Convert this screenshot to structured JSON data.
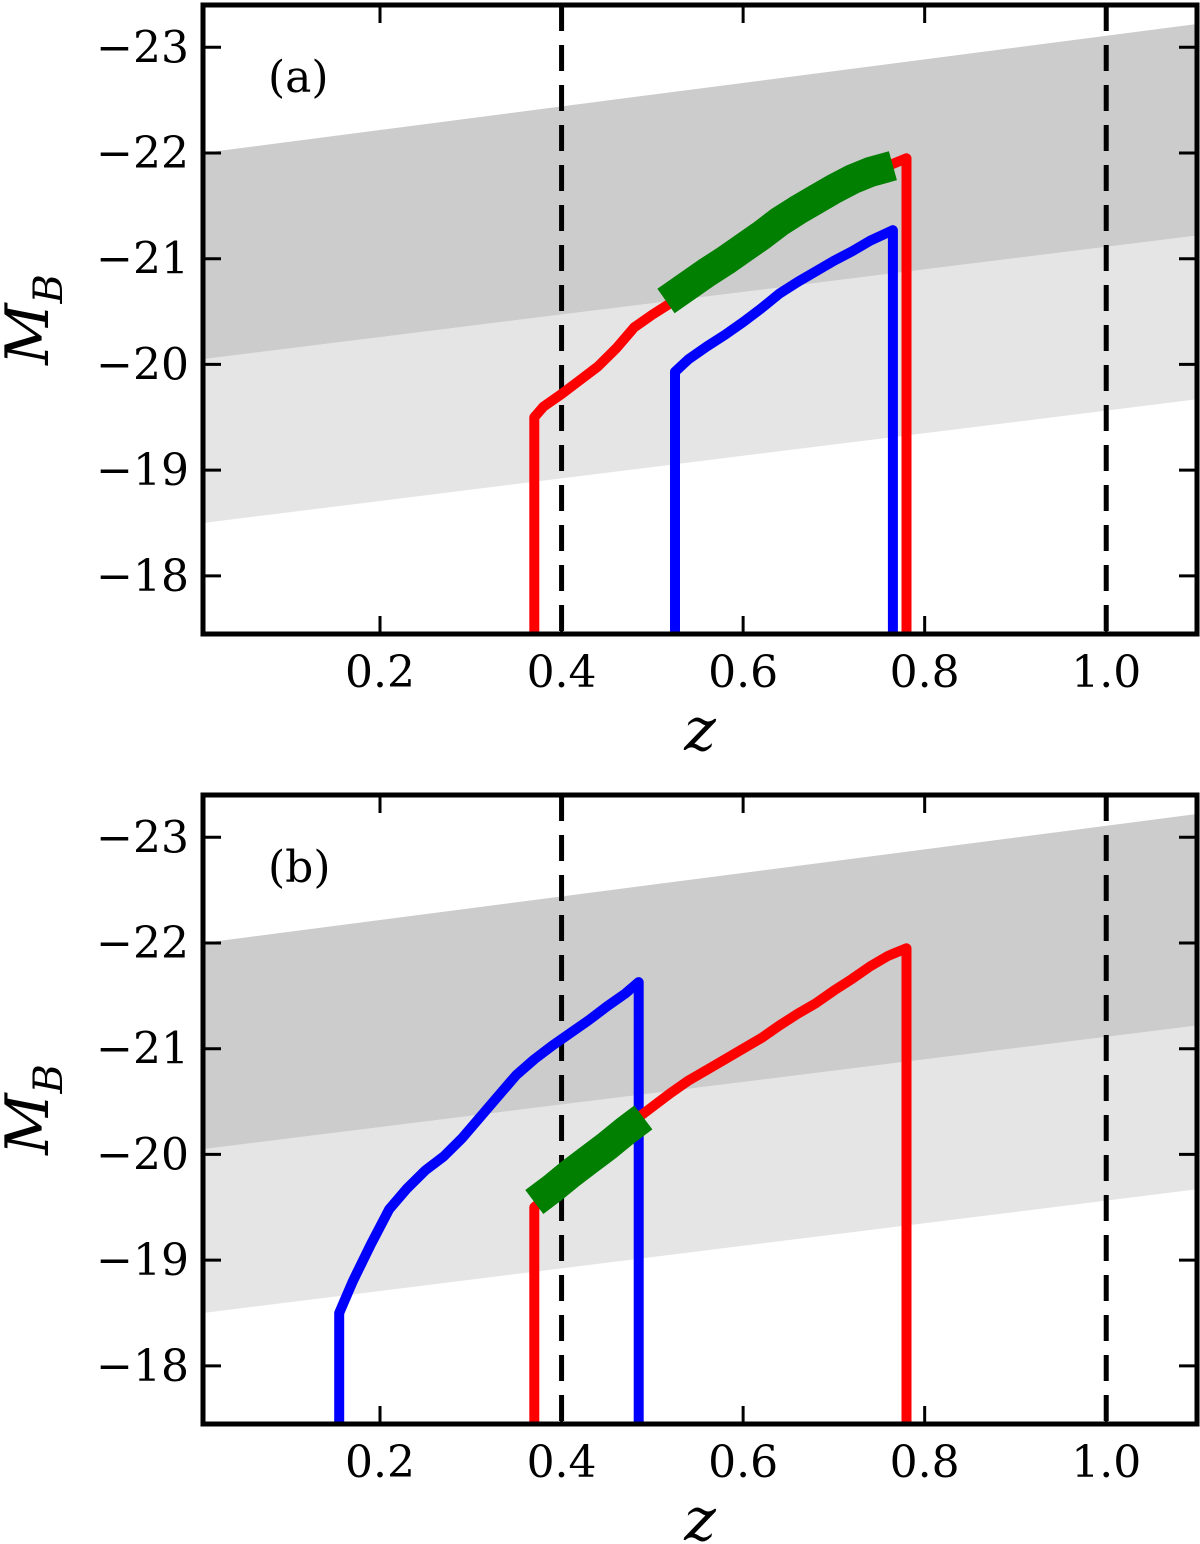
{
  "chart_data": [
    {
      "type": "line",
      "panel_label": "(a)",
      "xlabel": "z",
      "ylabel": "M_B",
      "xlim": [
        0.005,
        1.1
      ],
      "ylim": [
        -17.45,
        -23.4
      ],
      "y_axis_inverted": true,
      "grid": false,
      "xticks": [
        0.2,
        0.4,
        0.6,
        0.8,
        1.0
      ],
      "xtick_labels": [
        "0.2",
        "0.4",
        "0.6",
        "0.8",
        "1.0"
      ],
      "yticks": [
        -23,
        -22,
        -21,
        -20,
        -19,
        -18
      ],
      "ytick_labels": [
        "−23",
        "−22",
        "−21",
        "−20",
        "−19",
        "−18"
      ],
      "vlines": [
        {
          "x": 0.4,
          "style": "dashed",
          "color": "#000000"
        },
        {
          "x": 1.0,
          "style": "dashed",
          "color": "#000000"
        }
      ],
      "bands": [
        {
          "color": "#e5e5e5",
          "lower": [
            [
              0.005,
              -18.5
            ],
            [
              1.1,
              -19.67
            ]
          ],
          "upper": [
            [
              0.005,
              -20.05
            ],
            [
              1.1,
              -21.22
            ]
          ]
        },
        {
          "color": "#cccccc",
          "lower": [
            [
              0.005,
              -20.05
            ],
            [
              1.1,
              -21.22
            ]
          ],
          "upper": [
            [
              0.005,
              -22.0
            ],
            [
              1.1,
              -23.22
            ]
          ]
        }
      ],
      "series": [
        {
          "color": "#ff0000",
          "width": 10,
          "points": [
            [
              0.37,
              -17.45
            ],
            [
              0.37,
              -19.5
            ],
            [
              0.38,
              -19.6
            ],
            [
              0.4,
              -19.72
            ],
            [
              0.42,
              -19.85
            ],
            [
              0.44,
              -19.98
            ],
            [
              0.46,
              -20.15
            ],
            [
              0.48,
              -20.35
            ],
            [
              0.5,
              -20.47
            ],
            [
              0.52,
              -20.58
            ],
            [
              0.54,
              -20.7
            ],
            [
              0.56,
              -20.82
            ],
            [
              0.58,
              -20.95
            ],
            [
              0.6,
              -21.07
            ],
            [
              0.62,
              -21.19
            ],
            [
              0.64,
              -21.32
            ],
            [
              0.66,
              -21.42
            ],
            [
              0.68,
              -21.52
            ],
            [
              0.7,
              -21.62
            ],
            [
              0.72,
              -21.72
            ],
            [
              0.74,
              -21.8
            ],
            [
              0.76,
              -21.88
            ],
            [
              0.78,
              -21.95
            ],
            [
              0.78,
              -17.45
            ]
          ]
        },
        {
          "color": "#0000ff",
          "width": 10,
          "points": [
            [
              0.525,
              -17.45
            ],
            [
              0.525,
              -19.93
            ],
            [
              0.54,
              -20.05
            ],
            [
              0.56,
              -20.17
            ],
            [
              0.58,
              -20.28
            ],
            [
              0.6,
              -20.4
            ],
            [
              0.62,
              -20.53
            ],
            [
              0.64,
              -20.67
            ],
            [
              0.66,
              -20.78
            ],
            [
              0.68,
              -20.88
            ],
            [
              0.7,
              -20.98
            ],
            [
              0.72,
              -21.07
            ],
            [
              0.74,
              -21.17
            ],
            [
              0.765,
              -21.27
            ],
            [
              0.765,
              -17.45
            ]
          ]
        },
        {
          "color": "#007f00",
          "width": 30,
          "points": [
            [
              0.515,
              -20.6
            ],
            [
              0.54,
              -20.75
            ],
            [
              0.56,
              -20.87
            ],
            [
              0.58,
              -20.98
            ],
            [
              0.6,
              -21.1
            ],
            [
              0.62,
              -21.22
            ],
            [
              0.64,
              -21.35
            ],
            [
              0.66,
              -21.46
            ],
            [
              0.68,
              -21.56
            ],
            [
              0.7,
              -21.66
            ],
            [
              0.72,
              -21.75
            ],
            [
              0.74,
              -21.82
            ],
            [
              0.765,
              -21.88
            ]
          ]
        }
      ]
    },
    {
      "type": "line",
      "panel_label": "(b)",
      "xlabel": "z",
      "ylabel": "M_B",
      "xlim": [
        0.005,
        1.1
      ],
      "ylim": [
        -17.45,
        -23.4
      ],
      "y_axis_inverted": true,
      "grid": false,
      "xticks": [
        0.2,
        0.4,
        0.6,
        0.8,
        1.0
      ],
      "xtick_labels": [
        "0.2",
        "0.4",
        "0.6",
        "0.8",
        "1.0"
      ],
      "yticks": [
        -23,
        -22,
        -21,
        -20,
        -19,
        -18
      ],
      "ytick_labels": [
        "−23",
        "−22",
        "−21",
        "−20",
        "−19",
        "−18"
      ],
      "vlines": [
        {
          "x": 0.4,
          "style": "dashed",
          "color": "#000000"
        },
        {
          "x": 1.0,
          "style": "dashed",
          "color": "#000000"
        }
      ],
      "bands": [
        {
          "color": "#e5e5e5",
          "lower": [
            [
              0.005,
              -18.5
            ],
            [
              1.1,
              -19.67
            ]
          ],
          "upper": [
            [
              0.005,
              -20.05
            ],
            [
              1.1,
              -21.22
            ]
          ]
        },
        {
          "color": "#cccccc",
          "lower": [
            [
              0.005,
              -20.05
            ],
            [
              1.1,
              -21.22
            ]
          ],
          "upper": [
            [
              0.005,
              -22.0
            ],
            [
              1.1,
              -23.22
            ]
          ]
        }
      ],
      "series": [
        {
          "color": "#0000ff",
          "width": 10,
          "points": [
            [
              0.155,
              -17.45
            ],
            [
              0.155,
              -18.5
            ],
            [
              0.17,
              -18.8
            ],
            [
              0.19,
              -19.15
            ],
            [
              0.21,
              -19.48
            ],
            [
              0.23,
              -19.68
            ],
            [
              0.25,
              -19.85
            ],
            [
              0.27,
              -19.98
            ],
            [
              0.29,
              -20.15
            ],
            [
              0.31,
              -20.35
            ],
            [
              0.33,
              -20.55
            ],
            [
              0.35,
              -20.75
            ],
            [
              0.37,
              -20.9
            ],
            [
              0.39,
              -21.03
            ],
            [
              0.41,
              -21.15
            ],
            [
              0.43,
              -21.27
            ],
            [
              0.45,
              -21.4
            ],
            [
              0.47,
              -21.52
            ],
            [
              0.485,
              -21.63
            ],
            [
              0.485,
              -17.45
            ]
          ]
        },
        {
          "color": "#ff0000",
          "width": 10,
          "points": [
            [
              0.37,
              -17.45
            ],
            [
              0.37,
              -19.5
            ],
            [
              0.4,
              -19.72
            ],
            [
              0.44,
              -19.98
            ],
            [
              0.48,
              -20.32
            ],
            [
              0.5,
              -20.45
            ],
            [
              0.52,
              -20.58
            ],
            [
              0.54,
              -20.7
            ],
            [
              0.56,
              -20.8
            ],
            [
              0.58,
              -20.9
            ],
            [
              0.6,
              -21.0
            ],
            [
              0.62,
              -21.1
            ],
            [
              0.64,
              -21.22
            ],
            [
              0.66,
              -21.33
            ],
            [
              0.68,
              -21.43
            ],
            [
              0.7,
              -21.55
            ],
            [
              0.72,
              -21.66
            ],
            [
              0.74,
              -21.78
            ],
            [
              0.76,
              -21.88
            ],
            [
              0.78,
              -21.95
            ],
            [
              0.78,
              -17.45
            ]
          ]
        },
        {
          "color": "#007f00",
          "width": 30,
          "points": [
            [
              0.37,
              -19.55
            ],
            [
              0.39,
              -19.68
            ],
            [
              0.41,
              -19.82
            ],
            [
              0.43,
              -19.95
            ],
            [
              0.45,
              -20.08
            ],
            [
              0.47,
              -20.22
            ],
            [
              0.49,
              -20.35
            ]
          ]
        }
      ]
    }
  ]
}
